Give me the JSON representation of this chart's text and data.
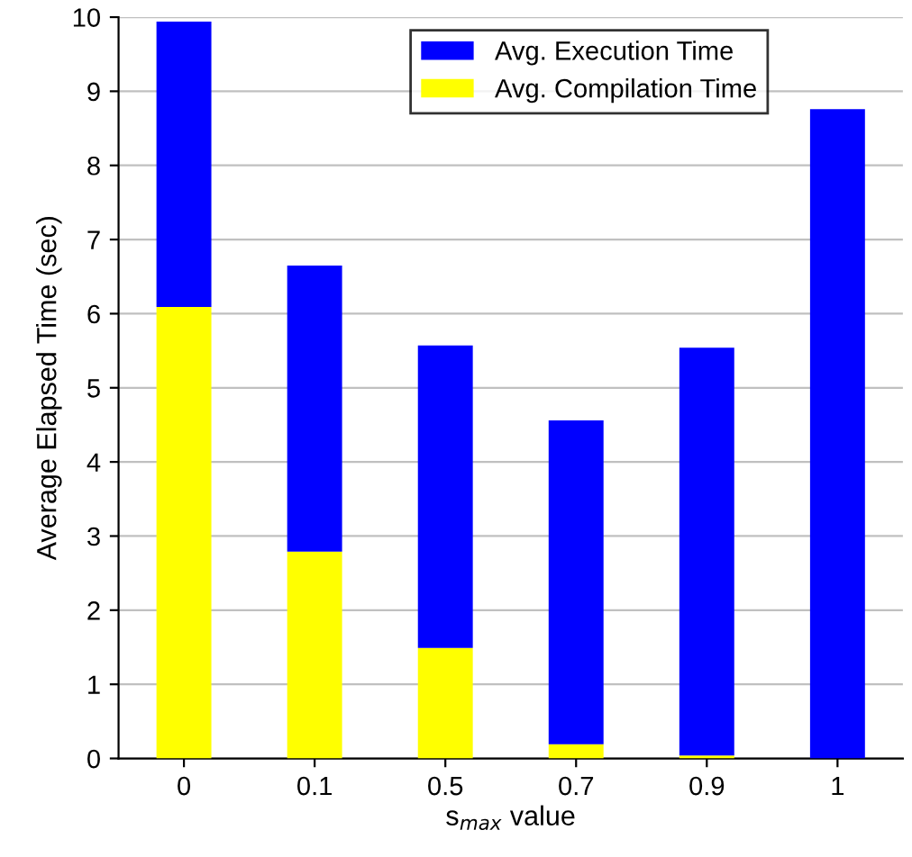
{
  "chart_data": {
    "type": "bar",
    "stacked": true,
    "categories": [
      "0",
      "0.1",
      "0.5",
      "0.7",
      "0.9",
      "1"
    ],
    "series": [
      {
        "name": "Avg. Compilation Time",
        "color": "#ffff00",
        "values": [
          6.09,
          2.79,
          1.49,
          0.19,
          0.04,
          0
        ]
      },
      {
        "name": "Avg. Execution Time",
        "color": "#0000ff",
        "values": [
          3.85,
          3.86,
          4.08,
          4.37,
          5.5,
          8.76
        ]
      }
    ],
    "xlabel": "s$_{max}$ value",
    "ylabel": "Average Elapsed Time (sec)",
    "ylim": [
      0,
      10
    ],
    "yticks": [
      0,
      1,
      2,
      3,
      4,
      5,
      6,
      7,
      8,
      9,
      10
    ],
    "grid": "y",
    "legend": "top"
  }
}
